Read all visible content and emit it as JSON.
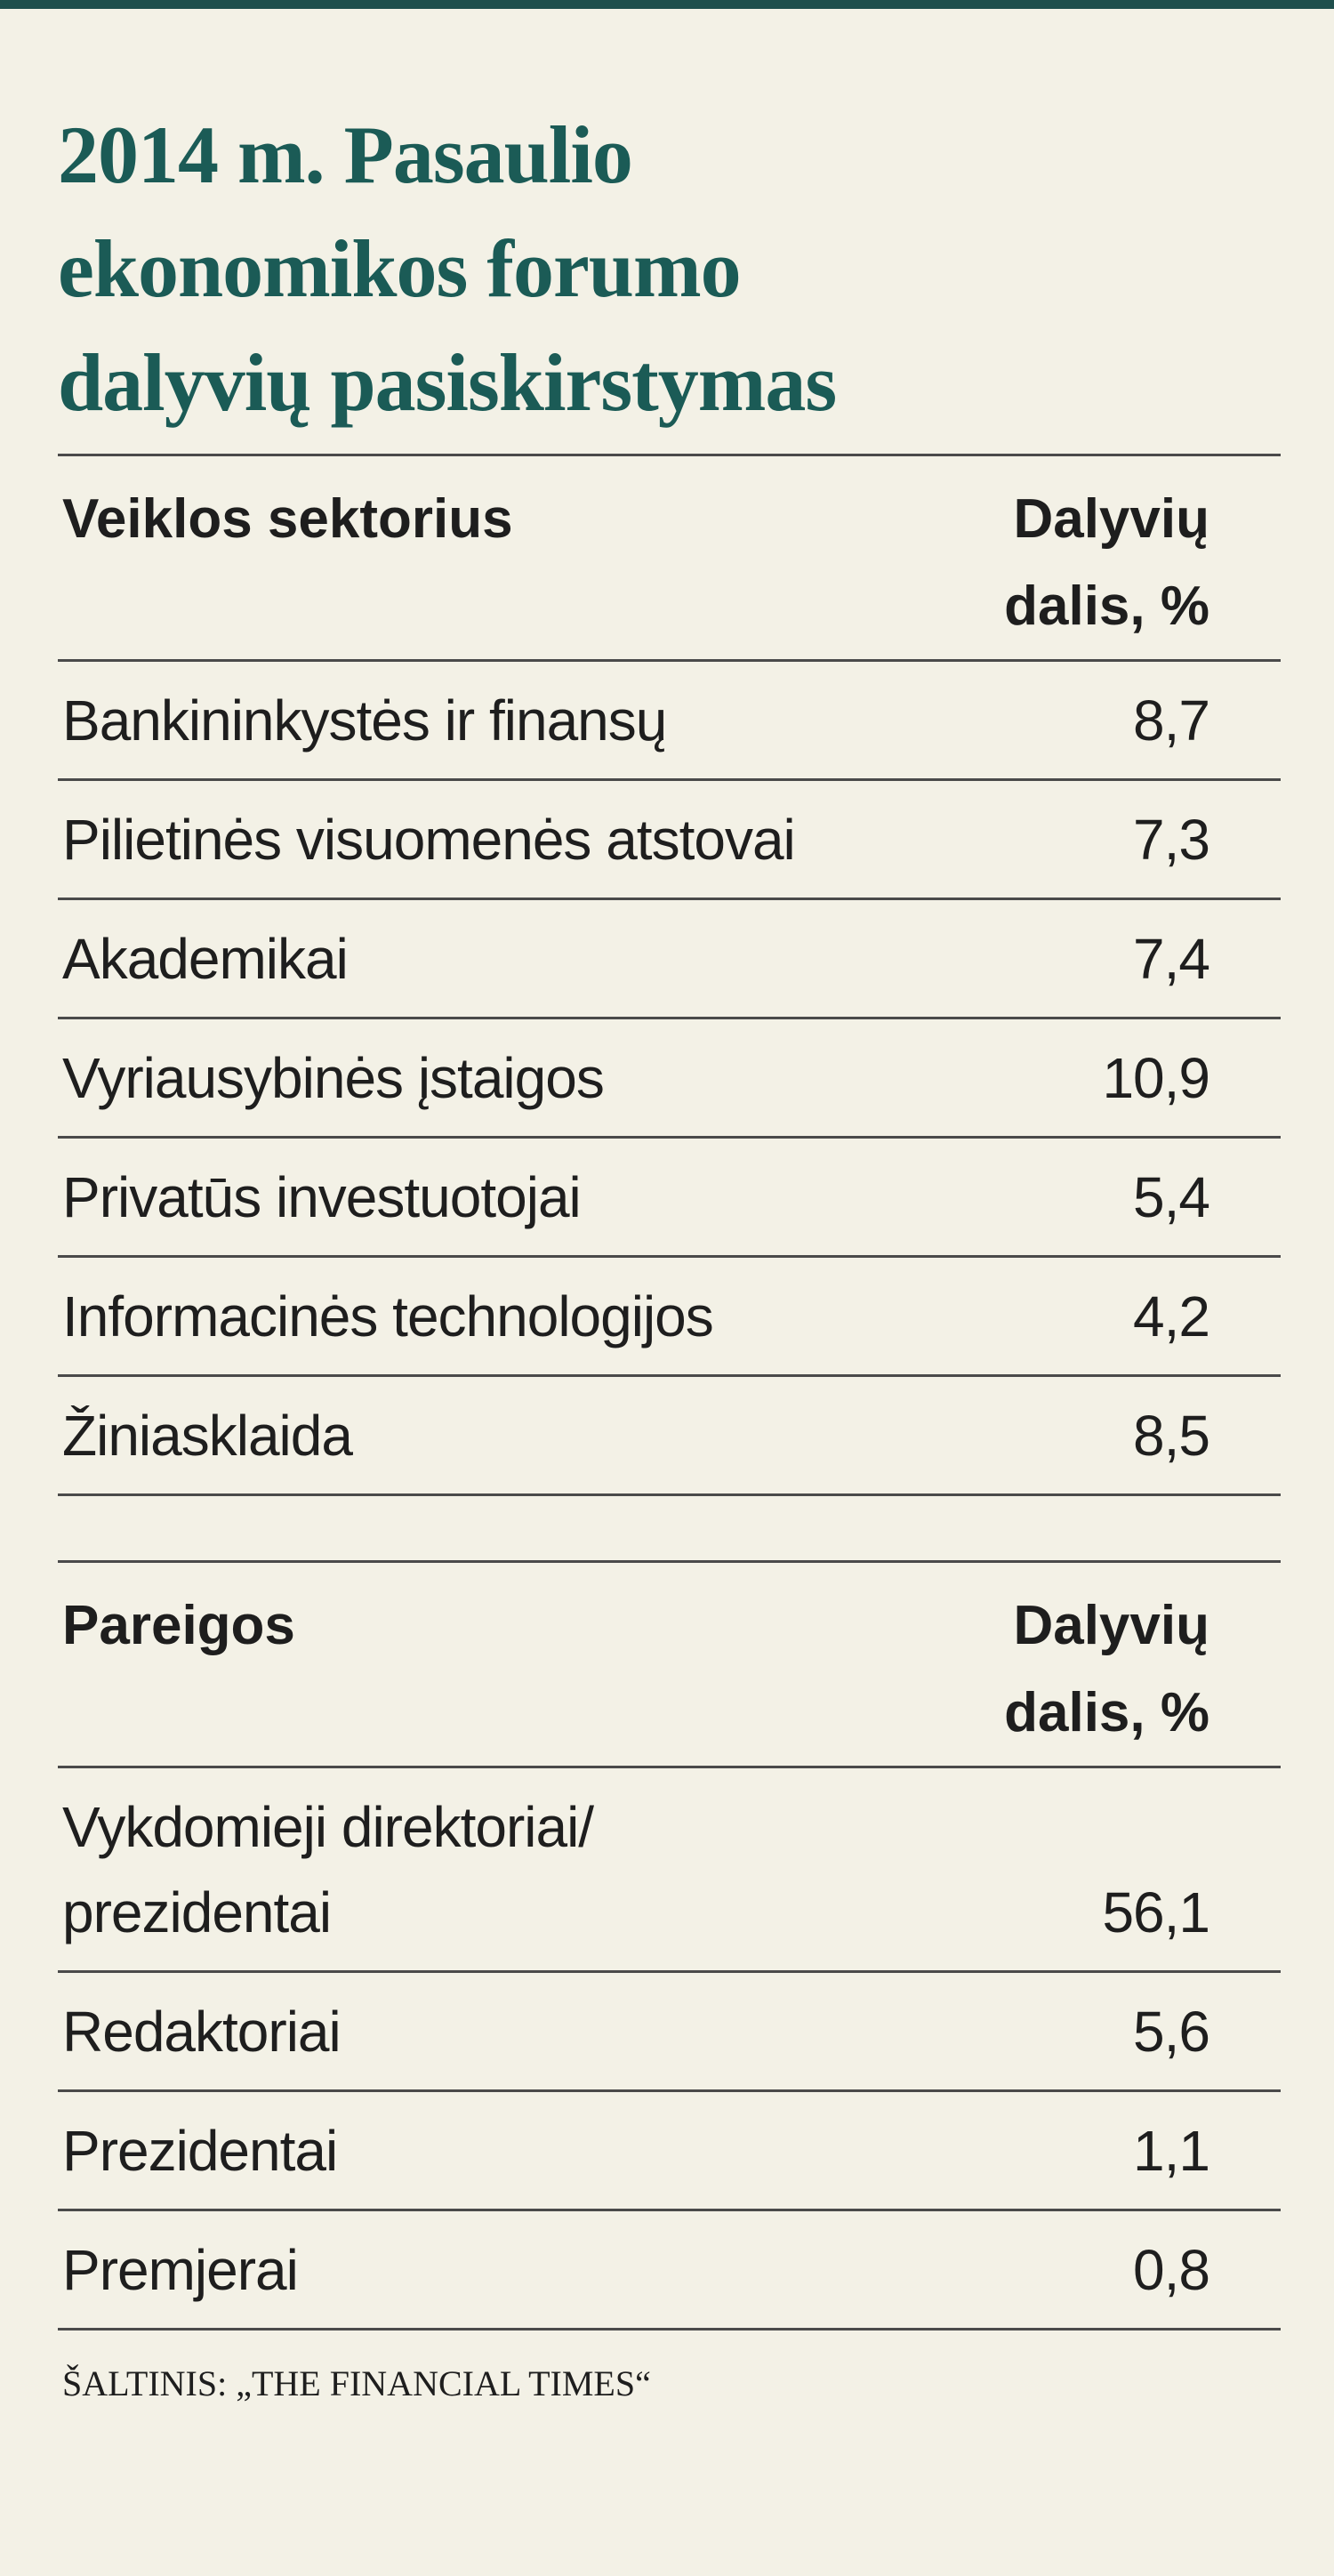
{
  "title": "2014 m. Pasaulio\nekonomikos forumo\ndalyvių pasiskirstymas",
  "tables": [
    {
      "header": [
        "Veiklos sektorius",
        "Dalyvių\ndalis, %"
      ],
      "rows": [
        [
          "Bankininkystės ir finansų",
          "8,7"
        ],
        [
          "Pilietinės visuomenės atstovai",
          "7,3"
        ],
        [
          "Akademikai",
          "7,4"
        ],
        [
          "Vyriausybinės įstaigos",
          "10,9"
        ],
        [
          "Privatūs investuotojai",
          "5,4"
        ],
        [
          "Informacinės technologijos",
          "4,2"
        ],
        [
          "Žiniasklaida",
          "8,5"
        ]
      ]
    },
    {
      "header": [
        "Pareigos",
        "Dalyvių\ndalis, %"
      ],
      "rows": [
        [
          "Vykdomieji direktoriai/\nprezidentai",
          "56,1"
        ],
        [
          "Redaktoriai",
          "5,6"
        ],
        [
          "Prezidentai",
          "1,1"
        ],
        [
          "Premjerai",
          "0,8"
        ]
      ]
    }
  ],
  "source": "ŠALTINIS: „THE FINANCIAL TIMES“"
}
